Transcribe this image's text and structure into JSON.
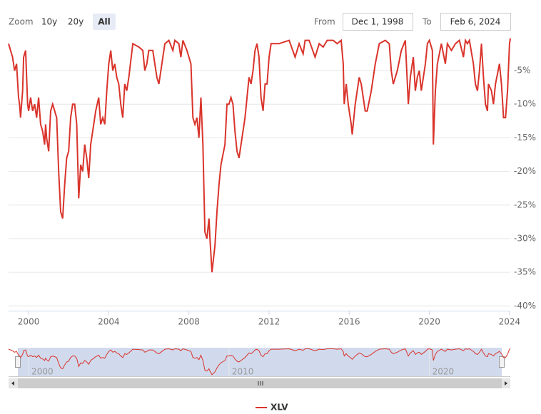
{
  "zoom": {
    "label": "Zoom",
    "buttons": [
      "10y",
      "20y",
      "All"
    ],
    "selected": 2
  },
  "range": {
    "from_label": "From",
    "from": "Dec 1, 1998",
    "to_label": "To",
    "to": "Feb 6, 2024"
  },
  "chart_data": {
    "type": "line",
    "x": [
      1999.0,
      1999.1,
      1999.2,
      1999.3,
      1999.4,
      1999.5,
      1999.55,
      1999.6,
      1999.7,
      1999.75,
      1999.85,
      1999.95,
      2000.0,
      2000.1,
      2000.2,
      2000.3,
      2000.4,
      2000.5,
      2000.6,
      2000.7,
      2000.8,
      2000.85,
      2000.9,
      2001.0,
      2001.1,
      2001.2,
      2001.3,
      2001.4,
      2001.5,
      2001.6,
      2001.7,
      2001.8,
      2001.9,
      2002.0,
      2002.1,
      2002.2,
      2002.3,
      2002.4,
      2002.5,
      2002.6,
      2002.7,
      2002.8,
      2002.9,
      2003.0,
      2003.1,
      2003.2,
      2003.35,
      2003.5,
      2003.6,
      2003.7,
      2003.8,
      2003.9,
      2004.0,
      2004.1,
      2004.2,
      2004.3,
      2004.4,
      2004.5,
      2004.6,
      2004.7,
      2004.8,
      2004.9,
      2005.0,
      2005.2,
      2005.5,
      2005.7,
      2005.8,
      2005.9,
      2006.0,
      2006.2,
      2006.4,
      2006.5,
      2006.6,
      2006.8,
      2007.0,
      2007.2,
      2007.3,
      2007.5,
      2007.6,
      2007.7,
      2007.9,
      2008.1,
      2008.2,
      2008.3,
      2008.4,
      2008.5,
      2008.6,
      2008.7,
      2008.8,
      2008.9,
      2009.0,
      2009.05,
      2009.15,
      2009.3,
      2009.4,
      2009.5,
      2009.6,
      2009.8,
      2009.9,
      2010.0,
      2010.1,
      2010.2,
      2010.3,
      2010.4,
      2010.5,
      2010.6,
      2010.8,
      2010.9,
      2011.0,
      2011.1,
      2011.2,
      2011.3,
      2011.4,
      2011.5,
      2011.6,
      2011.7,
      2011.8,
      2011.9,
      2012.0,
      2012.1,
      2012.5,
      2013.0,
      2013.3,
      2013.5,
      2013.7,
      2013.8,
      2014.0,
      2014.3,
      2014.5,
      2014.7,
      2014.9,
      2015.2,
      2015.4,
      2015.6,
      2015.7,
      2015.75,
      2015.85,
      2015.95,
      2016.1,
      2016.15,
      2016.3,
      2016.5,
      2016.6,
      2016.8,
      2016.9,
      2017.1,
      2017.3,
      2017.5,
      2017.8,
      2018.0,
      2018.1,
      2018.2,
      2018.4,
      2018.6,
      2018.8,
      2018.95,
      2019.05,
      2019.2,
      2019.3,
      2019.4,
      2019.5,
      2019.6,
      2019.8,
      2019.9,
      2020.0,
      2020.15,
      2020.2,
      2020.3,
      2020.4,
      2020.6,
      2020.8,
      2020.9,
      2021.1,
      2021.3,
      2021.5,
      2021.7,
      2021.8,
      2021.9,
      2022.0,
      2022.2,
      2022.3,
      2022.4,
      2022.5,
      2022.6,
      2022.7,
      2022.8,
      2022.9,
      2022.95,
      2023.1,
      2023.2,
      2023.3,
      2023.5,
      2023.6,
      2023.7,
      2023.8,
      2023.9,
      2024.0,
      2024.04
    ],
    "series": [
      {
        "name": "XLV",
        "color": "#d9342b",
        "values": [
          -1,
          -2,
          -3,
          -5,
          -4,
          -9,
          -10,
          -12,
          -8,
          -3,
          -2,
          -10,
          -11,
          -9,
          -11,
          -10,
          -12,
          -9,
          -13,
          -14,
          -16,
          -13,
          -15,
          -17,
          -11,
          -10,
          -11,
          -12,
          -20,
          -26,
          -27,
          -22,
          -18,
          -17,
          -12,
          -10,
          -10,
          -13,
          -24,
          -19,
          -20,
          -16,
          -18,
          -21,
          -16,
          -14,
          -11,
          -9,
          -13,
          -12,
          -13,
          -8,
          -4,
          -2,
          -5,
          -4,
          -6,
          -7,
          -10,
          -12,
          -7,
          -8,
          -6,
          -1,
          -1.5,
          -2,
          -5,
          -4,
          -2,
          -2,
          -6,
          -7,
          -5,
          -1,
          -0.5,
          -2,
          -0.5,
          -1,
          -3,
          -0.5,
          -2,
          -4,
          -12,
          -13,
          -12,
          -15,
          -9,
          -16,
          -29,
          -30,
          -27,
          -30,
          -35,
          -31,
          -26,
          -22,
          -19,
          -16,
          -10,
          -10,
          -9,
          -10,
          -14,
          -17,
          -18,
          -16,
          -12,
          -9,
          -6,
          -7,
          -5,
          -2,
          -1,
          -3,
          -9,
          -11,
          -7,
          -7,
          -3,
          -1,
          -1,
          -0.5,
          -3,
          -1,
          -2.5,
          -0.5,
          -0.5,
          -3,
          -1,
          -1.5,
          -0.5,
          -0.5,
          -1,
          -0.5,
          -4,
          -10,
          -7,
          -10,
          -13,
          -14.5,
          -10,
          -6,
          -7,
          -11,
          -11,
          -8,
          -4,
          -1,
          -0.5,
          -1,
          -5,
          -7,
          -5,
          -2,
          -0.5,
          -10,
          -6,
          -3,
          -8,
          -6,
          -5,
          -8,
          -4,
          -1,
          -0.5,
          -2,
          -16,
          -8,
          -4,
          -1,
          -4,
          -1,
          -2,
          -1,
          -0.5,
          -3,
          -0.5,
          -1,
          -0.5,
          -4,
          -7,
          -8,
          -5,
          -1,
          -6,
          -10,
          -11,
          -7,
          -8,
          -10,
          -7,
          -4,
          -7,
          -12,
          -12,
          -8,
          -1,
          -0.2
        ]
      }
    ],
    "xlim": [
      1999.0,
      2024.04
    ],
    "xticks": [
      2000,
      2004,
      2008,
      2012,
      2016,
      2020,
      2024
    ],
    "ylim": [
      -40.5,
      0.2
    ],
    "yticks": [
      {
        "value": -5,
        "label": "-5%"
      },
      {
        "value": -10,
        "label": "-10%"
      },
      {
        "value": -15,
        "label": "-15%"
      },
      {
        "value": -20,
        "label": "-20%"
      },
      {
        "value": -25,
        "label": "-25%"
      },
      {
        "value": -30,
        "label": "-30%"
      },
      {
        "value": -35,
        "label": "-35%"
      },
      {
        "value": -40,
        "label": "-40%"
      }
    ],
    "grid": true,
    "navigator": {
      "xticks": [
        2000,
        2010,
        2020
      ],
      "ylim": [
        -36,
        0
      ]
    }
  }
}
